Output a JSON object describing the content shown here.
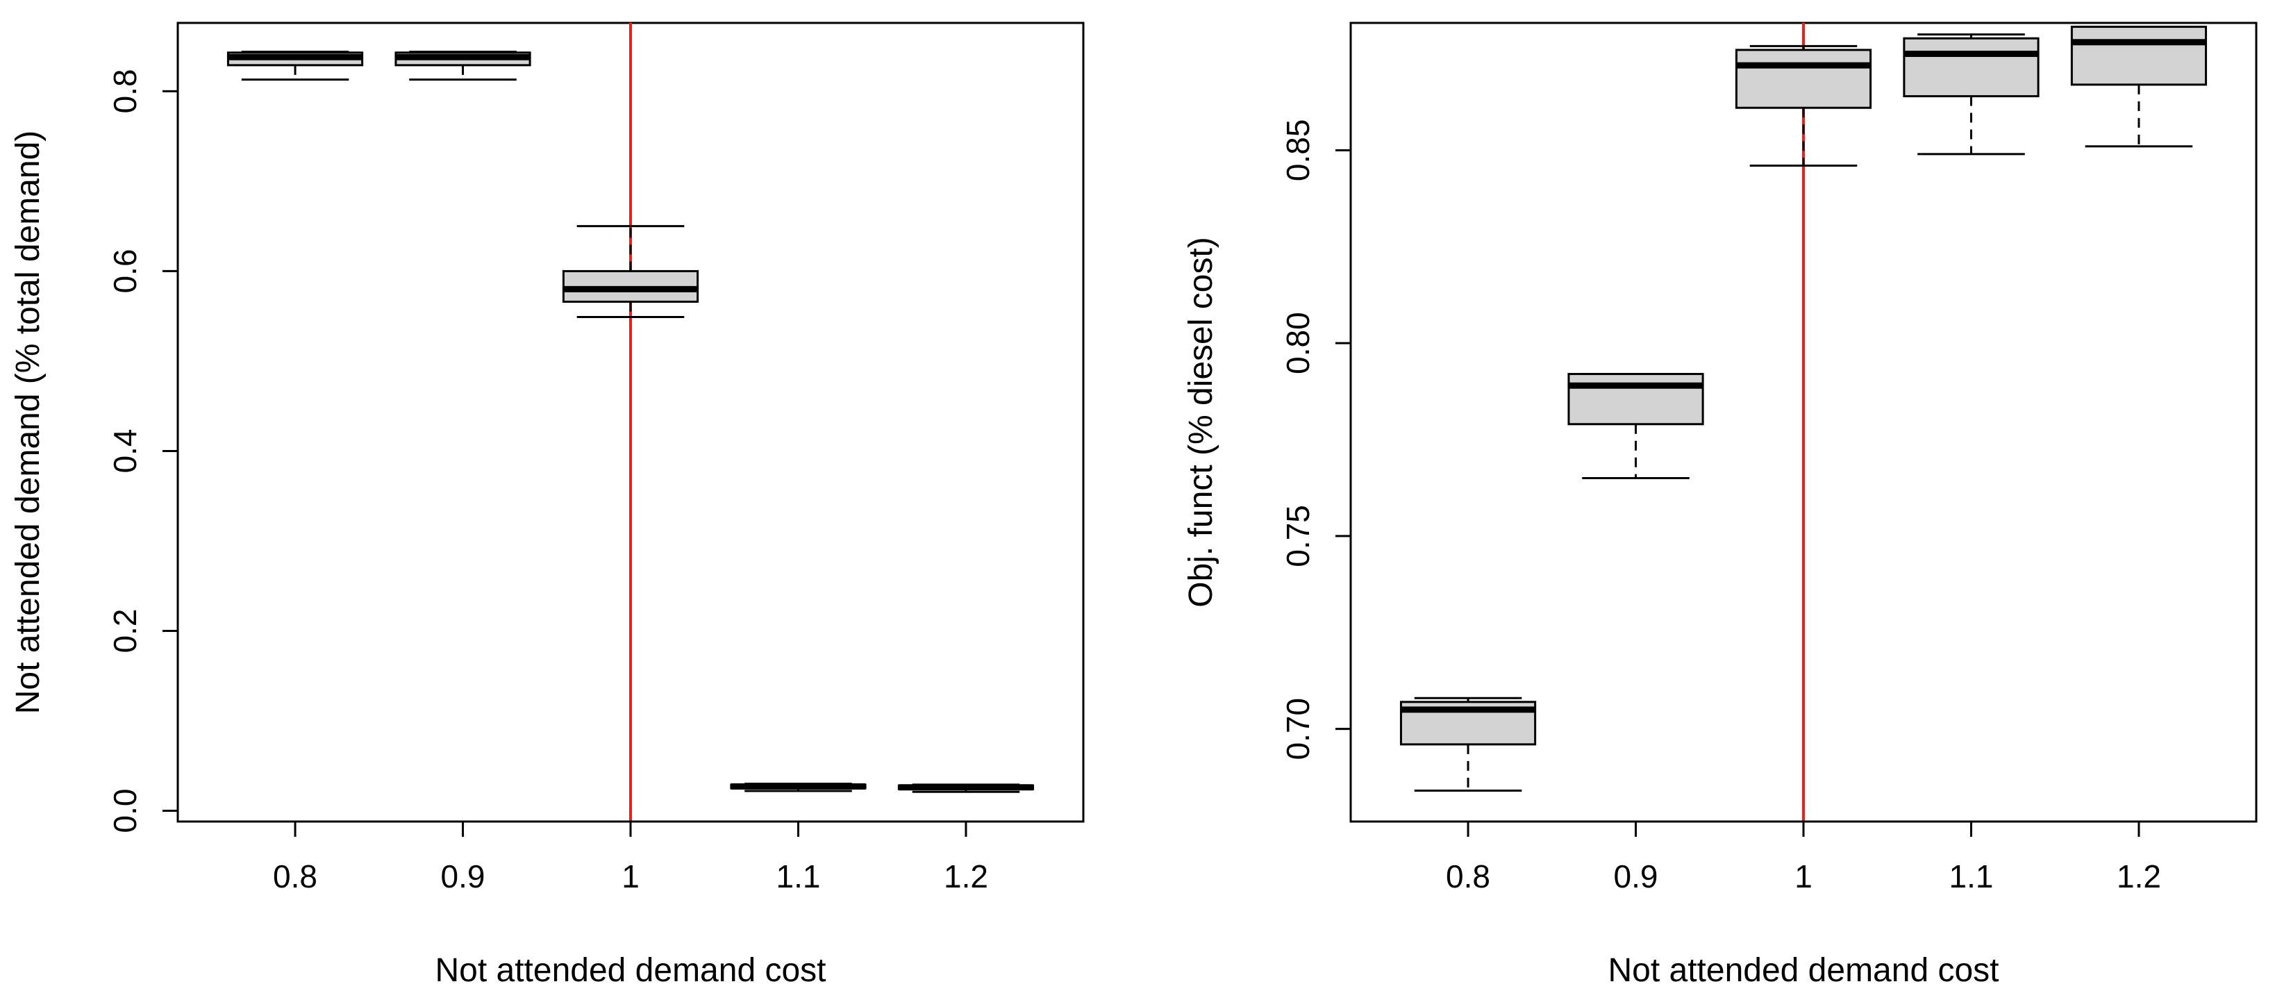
{
  "chart_data": [
    {
      "type": "boxplot",
      "title": "",
      "xlabel": "Not attended demand cost",
      "ylabel": "Not attended demand (% total demand)",
      "categories": [
        "0.8",
        "0.9",
        "1",
        "1.1",
        "1.2"
      ],
      "ylim": [
        -0.012,
        0.876
      ],
      "yticks": [
        "0.0",
        "0.2",
        "0.4",
        "0.6",
        "0.8"
      ],
      "ytick_values": [
        0.0,
        0.2,
        0.4,
        0.6,
        0.8
      ],
      "reference_line_category": "1",
      "boxes": [
        {
          "min": 0.813,
          "q1": 0.829,
          "median": 0.838,
          "q3": 0.843,
          "max": 0.844
        },
        {
          "min": 0.813,
          "q1": 0.829,
          "median": 0.838,
          "q3": 0.843,
          "max": 0.844
        },
        {
          "min": 0.549,
          "q1": 0.566,
          "median": 0.58,
          "q3": 0.6,
          "max": 0.65
        },
        {
          "min": 0.022,
          "q1": 0.025,
          "median": 0.027,
          "q3": 0.029,
          "max": 0.03
        },
        {
          "min": 0.021,
          "q1": 0.024,
          "median": 0.026,
          "q3": 0.028,
          "max": 0.029
        }
      ],
      "colors": {
        "box_fill": "#d3d3d3",
        "reference_line": "#e8221a"
      }
    },
    {
      "type": "boxplot",
      "title": "",
      "xlabel": "Not attended demand cost",
      "ylabel": "Obj. funct (% diesel cost)",
      "categories": [
        "0.8",
        "0.9",
        "1",
        "1.1",
        "1.2"
      ],
      "ylim": [
        0.676,
        0.883
      ],
      "yticks": [
        "0.70",
        "0.75",
        "0.80",
        "0.85"
      ],
      "ytick_values": [
        0.7,
        0.75,
        0.8,
        0.85
      ],
      "reference_line_category": "1",
      "boxes": [
        {
          "min": 0.684,
          "q1": 0.696,
          "median": 0.705,
          "q3": 0.707,
          "max": 0.708
        },
        {
          "min": 0.765,
          "q1": 0.779,
          "median": 0.789,
          "q3": 0.792,
          "max": 0.792
        },
        {
          "min": 0.846,
          "q1": 0.861,
          "median": 0.872,
          "q3": 0.876,
          "max": 0.877
        },
        {
          "min": 0.849,
          "q1": 0.864,
          "median": 0.875,
          "q3": 0.879,
          "max": 0.88
        },
        {
          "min": 0.851,
          "q1": 0.867,
          "median": 0.878,
          "q3": 0.882,
          "max": 0.882
        }
      ],
      "colors": {
        "box_fill": "#d3d3d3",
        "reference_line": "#e8221a"
      }
    }
  ]
}
